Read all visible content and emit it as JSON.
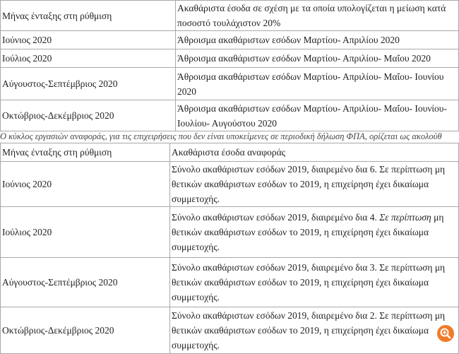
{
  "table1": {
    "header": [
      "Μήνας ένταξης στη ρύθμιση",
      "Ακαθάριστα έσοδα σε σχέση με τα οποία υπολογίζεται η μείωση κατά ποσοστό τουλάχιστον 20%"
    ],
    "rows": [
      [
        "Ιούνιος 2020",
        "Άθροισμα ακαθάριστων εσόδων Μαρτίου- Απριλίου 2020"
      ],
      [
        "Ιούλιος 2020",
        "Άθροισμα ακαθάριστων εσόδων Μαρτίου- Απριλίου- Μαΐου 2020"
      ],
      [
        "Αύγουστος-Σεπτέμβριος 2020",
        "Άθροισμα ακαθάριστων εσόδων Μαρτίου- Απριλίου- Μαΐου- Ιουνίου 2020"
      ],
      [
        "Οκτώβριος-Δεκέμβριος 2020",
        "Άθροισμα ακαθάριστων εσόδων Μαρτίου- Απριλίου- Μαΐου- Ιουνίου-Ιουλίου- Αυγούστου 2020"
      ]
    ]
  },
  "note": "Ο κύκλος εργασιών αναφοράς, για τις επιχειρήσεις που δεν είναι υποκείμενες σε περιοδική  δήλωση ΦΠΑ, ορίζεται ως ακολούθ",
  "table2": {
    "header": [
      "Μήνας ένταξης στη ρύθμιση",
      "Ακαθάριστα έσοδα αναφοράς"
    ],
    "rows": [
      [
        "Ιούνιος 2020",
        "Σύνολο ακαθάριστων εσόδων 2019, διαιρεμένο δια 6. Σε περίπτωση μη θετικών ακαθάριστων εσόδων το 2019, η επιχείρηση έχει δικαίωμα συμμετοχής."
      ],
      [
        "Ιούλιος 2020",
        [
          "Σύνολο ακαθάριστων εσόδων 2019, διαιρεμένο δια 4.",
          "Σε περίπτωση",
          "μη θετικών ακαθάριστων εσόδων το 2019, η επιχείρηση έχει δικαίωμα συμμετοχής."
        ]
      ],
      [
        "Αύγουστος-Σεπτέμβριος 2020",
        "Σύνολο ακαθάριστων εσόδων 2019, διαιρεμένο δια 3. Σε περίπτωση μη θετικών ακαθάριστων εσόδων το 2019, η επιχείρηση έχει δικαίωμα συμμετοχής."
      ],
      [
        "Οκτώβριος-Δεκέμβριος 2020",
        "Σύνολο ακαθάριστων εσόδων 2019, διαιρεμένο δια 2. Σε περίπτωση μη θετικών ακαθάριστων εσόδων το 2019, η επιχείρηση έχει δικαίωμα συμμετοχής."
      ]
    ]
  }
}
